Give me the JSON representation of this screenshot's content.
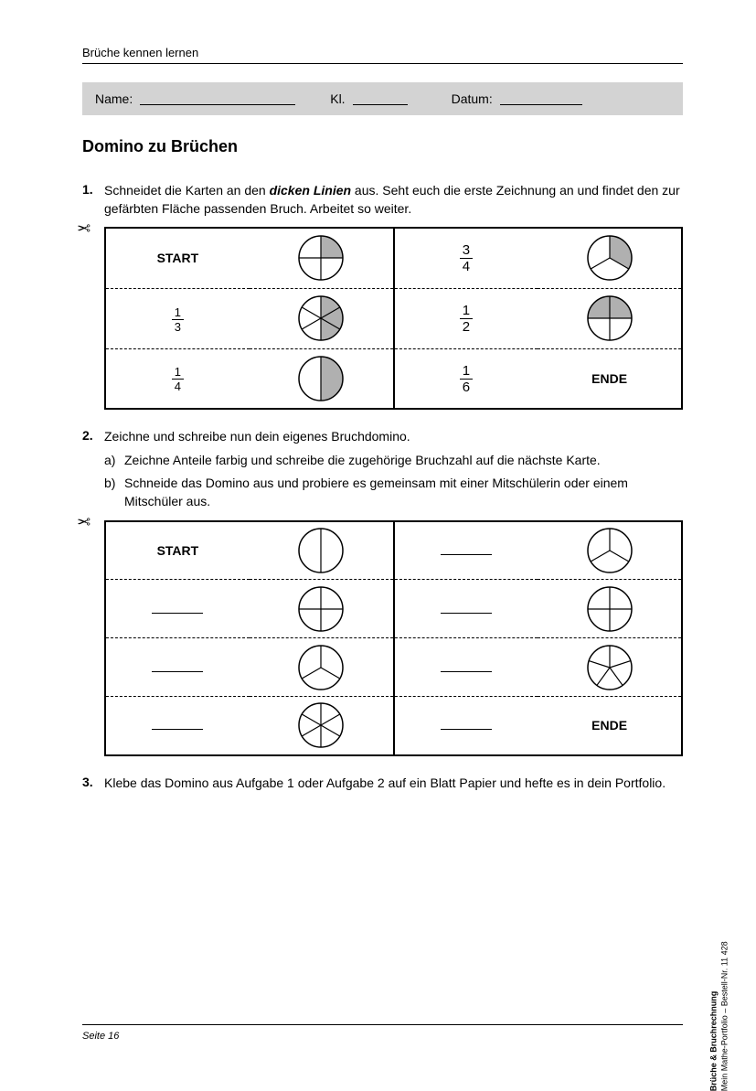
{
  "header": "Brüche kennen lernen",
  "info": {
    "name_label": "Name:",
    "kl_label": "Kl.",
    "date_label": "Datum:"
  },
  "title": "Domino zu Brüchen",
  "task1": {
    "num": "1.",
    "text_pre": "Schneidet die Karten an den ",
    "text_em": "dicken Linien",
    "text_post": " aus. Seht euch die erste Zeichnung an und findet den zur gefärbten Fläche passenden Bruch. Arbeitet so weiter."
  },
  "domino1": {
    "rows": [
      {
        "left_label": "START",
        "left_pie": {
          "slices": 4,
          "shaded": [
            0
          ]
        },
        "right_frac": {
          "n": "3",
          "d": "4"
        },
        "right_pie": {
          "slices": 3,
          "shaded": [
            0
          ]
        }
      },
      {
        "left_frac": {
          "n": "1",
          "d": "3"
        },
        "left_pie": {
          "slices": 6,
          "shaded": [
            0,
            1,
            2
          ]
        },
        "right_frac": {
          "n": "1",
          "d": "2"
        },
        "right_pie": {
          "slices": 4,
          "shaded": [
            0,
            3
          ]
        }
      },
      {
        "left_frac": {
          "n": "1",
          "d": "4"
        },
        "left_pie": {
          "slices": 2,
          "shaded": [
            0
          ]
        },
        "right_frac": {
          "n": "1",
          "d": "6"
        },
        "right_label": "ENDE"
      }
    ]
  },
  "task2": {
    "num": "2.",
    "text": "Zeichne und schreibe nun dein eigenes Bruchdomino.",
    "a_letter": "a)",
    "a_text": "Zeichne Anteile farbig und schreibe die zugehörige Bruchzahl auf die nächste Karte.",
    "b_letter": "b)",
    "b_text": "Schneide das Domino aus und probiere es gemeinsam mit einer Mitschülerin oder einem Mitschüler aus."
  },
  "domino2": {
    "rows": [
      {
        "left_label": "START",
        "left_pie": {
          "slices": 2,
          "shaded": []
        },
        "right_pie": {
          "slices": 3,
          "shaded": []
        }
      },
      {
        "left_pie": {
          "slices": 4,
          "shaded": []
        },
        "right_pie": {
          "slices": 4,
          "shaded": []
        }
      },
      {
        "left_pie": {
          "slices": 3,
          "shaded": []
        },
        "right_pie": {
          "slices": 5,
          "shaded": []
        }
      },
      {
        "left_pie": {
          "slices": 6,
          "shaded": []
        },
        "right_label": "ENDE"
      }
    ]
  },
  "task3": {
    "num": "3.",
    "text": "Klebe das Domino aus Aufgabe 1 oder Aufgabe 2 auf ein Blatt Papier und hefte es in dein Portfolio."
  },
  "footer": "Seite 16",
  "side": {
    "line1": "Brüche & Bruchrechnung",
    "line2": "Mein Mathe-Portfolio  –  Bestell-Nr. 11 428"
  },
  "style": {
    "shade_color": "#b0b0b0",
    "stroke_color": "#000000",
    "pie_radius": 24
  }
}
